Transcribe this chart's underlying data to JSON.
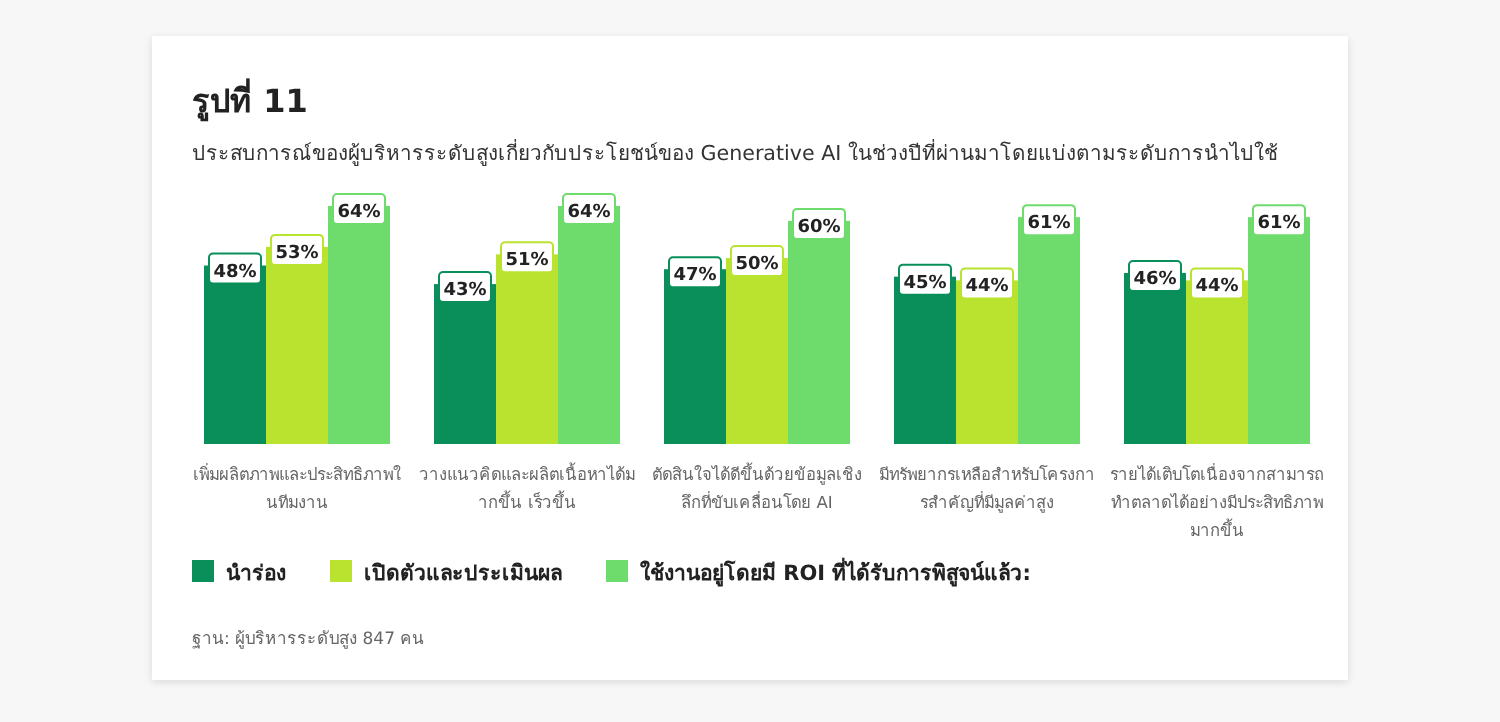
{
  "chart_data": {
    "type": "bar",
    "title": "รูปที่ 11",
    "subtitle": "ประสบการณ์ของผู้บริหารระดับสูงเกี่ยวกับประโยชน์ของ Generative AI ในช่วงปีที่ผ่านมาโดยแบ่งตามระดับการนำไปใช้",
    "categories": [
      "เพิ่มผลิตภาพและประสิทธิภาพในทีมงาน",
      "วางแนวคิดและผลิตเนื้อหาได้มากขึ้น เร็วขึ้น",
      "ตัดสินใจได้ดีขึ้นด้วยข้อมูลเชิงลึกที่ขับเคลื่อนโดย AI",
      "มีทรัพยากรเหลือสำหรับโครงการสำคัญที่มีมูลค่าสูง",
      "รายได้เติบโตเนื่องจากสามารถทำตลาดได้อย่างมีประสิทธิภาพมากขึ้น"
    ],
    "series": [
      {
        "name": "นำร่อง",
        "color": "#0a8f5a",
        "values": [
          48,
          43,
          47,
          45,
          46
        ],
        "value_labels": [
          "48%",
          "43%",
          "47%",
          "45%",
          "46%"
        ]
      },
      {
        "name": "เปิดตัวและประเมินผล",
        "color": "#b9e32f",
        "values": [
          53,
          51,
          50,
          44,
          44
        ],
        "value_labels": [
          "53%",
          "51%",
          "50%",
          "44%",
          "44%"
        ]
      },
      {
        "name": "ใช้งานอยู่โดยมี ROI ที่ได้รับการพิสูจน์แล้ว:",
        "color": "#6ddc6c",
        "values": [
          64,
          64,
          60,
          61,
          61
        ],
        "value_labels": [
          "64%",
          "64%",
          "60%",
          "61%",
          "61%"
        ]
      }
    ],
    "legend": "bottom",
    "annotations": [
      "ฐาน: ผู้บริหารระดับสูง 847 คน"
    ]
  }
}
